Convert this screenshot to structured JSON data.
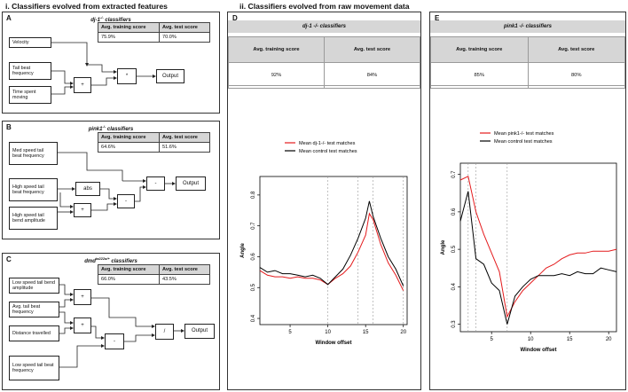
{
  "section_i": "i. Classifiers evolved from extracted features",
  "section_ii": "ii. Classifiers evolved from raw movement data",
  "panel_A": {
    "letter": "A",
    "title": "dj-1",
    "title_sup": "-/-",
    "title_rest": " classifiers",
    "headers": [
      "Avg. training score",
      "Avg. test score"
    ],
    "values": [
      "75.9%",
      "70.0%"
    ],
    "inputs": [
      "Velocity",
      "Tail beat frequency",
      "Time spent moving"
    ],
    "ops": [
      "+",
      "*"
    ],
    "output": "Output"
  },
  "panel_B": {
    "letter": "B",
    "title": "pink1",
    "title_sup": "-/-",
    "title_rest": " classifiers",
    "headers": [
      "Avg. training score",
      "Avg. test score"
    ],
    "values": [
      "64.6%",
      "51.6%"
    ],
    "inputs": [
      "Med speed tail beat frequency",
      "High speed tail beat frequency",
      "High speed tail bend amplitude"
    ],
    "ops": [
      "abs",
      "+",
      "-",
      "-"
    ],
    "output": "Output"
  },
  "panel_C": {
    "letter": "C",
    "title": "dmd",
    "title_sup": "ta222a/+",
    "title_rest": " classifiers",
    "headers": [
      "Avg. training score",
      "Avg. test score"
    ],
    "values": [
      "66.0%",
      "43.5%"
    ],
    "inputs": [
      "Low speed tail bend amplitude",
      "Avg. tail beat frequency",
      "Distance travelled",
      "Low speed tail beat frequency"
    ],
    "ops": [
      "+",
      "+",
      "-",
      "/"
    ],
    "output": "Output"
  },
  "panel_D": {
    "letter": "D",
    "title": "dj-1 -/- classifiers",
    "headers": [
      "Avg. training score",
      "Avg. test score"
    ],
    "values": [
      "92%",
      "84%"
    ]
  },
  "panel_E": {
    "letter": "E",
    "title": "pink1 -/- classifiers",
    "headers": [
      "Avg. training score",
      "Avg. test score"
    ],
    "values": [
      "85%",
      "80%"
    ]
  },
  "chart_data": [
    {
      "type": "line",
      "panel": "D",
      "xlabel": "Window offset",
      "ylabel": "Angle",
      "xlim": [
        1,
        20.5
      ],
      "ylim": [
        0.38,
        0.86
      ],
      "xticks": [
        5,
        10,
        15,
        20
      ],
      "yticks": [
        0.4,
        0.5,
        0.6,
        0.7,
        0.8
      ],
      "vlines": [
        10,
        14,
        16,
        20
      ],
      "legend": [
        "Mean dj-1-/- test matches",
        "Mean control test matches"
      ],
      "grid": false,
      "series": [
        {
          "name": "Mean dj-1-/- test matches",
          "color": "#e41a1c",
          "x": [
            1,
            2,
            3,
            4,
            5,
            6,
            7,
            8,
            9,
            10,
            11,
            12,
            13,
            14,
            15,
            15.5,
            16,
            17,
            18,
            19,
            20
          ],
          "values": [
            0.555,
            0.54,
            0.535,
            0.535,
            0.53,
            0.535,
            0.53,
            0.53,
            0.525,
            0.51,
            0.53,
            0.545,
            0.57,
            0.615,
            0.67,
            0.74,
            0.72,
            0.64,
            0.58,
            0.54,
            0.49
          ]
        },
        {
          "name": "Mean control test matches",
          "color": "#000000",
          "x": [
            1,
            2,
            3,
            4,
            5,
            6,
            7,
            8,
            9,
            10,
            11,
            12,
            13,
            14,
            15,
            15.5,
            16,
            17,
            18,
            19,
            20
          ],
          "values": [
            0.565,
            0.55,
            0.555,
            0.545,
            0.545,
            0.54,
            0.535,
            0.54,
            0.53,
            0.51,
            0.535,
            0.56,
            0.605,
            0.66,
            0.725,
            0.78,
            0.73,
            0.66,
            0.6,
            0.56,
            0.505
          ]
        }
      ]
    },
    {
      "type": "line",
      "panel": "E",
      "xlabel": "Window offset",
      "ylabel": "Angle",
      "xlim": [
        1,
        21
      ],
      "ylim": [
        0.28,
        0.73
      ],
      "xticks": [
        5,
        10,
        15,
        20
      ],
      "yticks": [
        0.3,
        0.4,
        0.5,
        0.6,
        0.7
      ],
      "vlines": [
        2,
        3,
        7
      ],
      "legend": [
        "Mean pink1-/- test matches",
        "Mean control test matches"
      ],
      "grid": false,
      "series": [
        {
          "name": "Mean pink1-/- test matches",
          "color": "#e41a1c",
          "x": [
            1,
            2,
            3,
            4,
            5,
            6,
            7,
            8,
            9,
            10,
            11,
            12,
            13,
            14,
            15,
            16,
            17,
            18,
            19,
            20,
            21
          ],
          "values": [
            0.685,
            0.695,
            0.6,
            0.54,
            0.49,
            0.44,
            0.32,
            0.36,
            0.39,
            0.41,
            0.43,
            0.45,
            0.46,
            0.475,
            0.485,
            0.49,
            0.49,
            0.495,
            0.495,
            0.495,
            0.5
          ]
        },
        {
          "name": "Mean control test matches",
          "color": "#000000",
          "x": [
            1,
            2,
            3,
            4,
            5,
            6,
            7,
            8,
            9,
            10,
            11,
            12,
            13,
            14,
            15,
            16,
            17,
            18,
            19,
            20,
            21
          ],
          "values": [
            0.575,
            0.655,
            0.475,
            0.46,
            0.41,
            0.39,
            0.3,
            0.375,
            0.4,
            0.42,
            0.43,
            0.43,
            0.43,
            0.435,
            0.43,
            0.44,
            0.435,
            0.435,
            0.45,
            0.445,
            0.44
          ]
        }
      ]
    }
  ]
}
